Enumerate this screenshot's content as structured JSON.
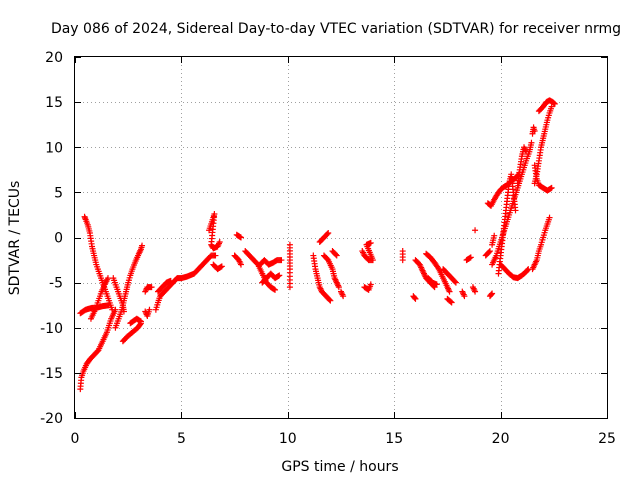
{
  "chart_data": {
    "type": "scatter",
    "title": "Day 086 of 2024, Sidereal Day-to-day VTEC variation (SDTVAR) for receiver nrmg",
    "xlabel": "GPS time / hours",
    "ylabel": "SDTVAR / TECUs",
    "xlim": [
      0,
      25
    ],
    "ylim": [
      -20,
      20
    ],
    "xticks": [
      0,
      5,
      10,
      15,
      20,
      25
    ],
    "yticks": [
      -20,
      -15,
      -10,
      -5,
      0,
      5,
      10,
      15,
      20
    ],
    "grid": true,
    "marker": "+",
    "color": "#ff0000",
    "segments": [
      [
        [
          0.25,
          -16.8
        ],
        [
          0.3,
          -15.5
        ],
        [
          0.4,
          -14.8
        ],
        [
          0.55,
          -14.0
        ],
        [
          0.7,
          -13.5
        ],
        [
          0.9,
          -13.0
        ],
        [
          1.1,
          -12.5
        ],
        [
          1.3,
          -11.5
        ],
        [
          1.5,
          -10.5
        ],
        [
          1.7,
          -9.0
        ],
        [
          1.9,
          -8.0
        ]
      ],
      [
        [
          0.25,
          -8.4
        ],
        [
          0.5,
          -8.0
        ],
        [
          0.8,
          -7.8
        ],
        [
          1.0,
          -7.8
        ],
        [
          1.3,
          -7.6
        ],
        [
          1.6,
          -7.5
        ]
      ],
      [
        [
          0.45,
          2.3
        ],
        [
          0.5,
          2.0
        ],
        [
          0.6,
          1.4
        ],
        [
          0.7,
          0.5
        ],
        [
          0.8,
          -1.0
        ],
        [
          0.9,
          -2.0
        ],
        [
          1.0,
          -3.0
        ],
        [
          1.15,
          -4.0
        ],
        [
          1.3,
          -5.0
        ],
        [
          1.45,
          -6.0
        ],
        [
          1.6,
          -7.0
        ],
        [
          1.75,
          -8.0
        ]
      ],
      [
        [
          0.75,
          -9.0
        ],
        [
          0.95,
          -8.0
        ],
        [
          1.1,
          -7.0
        ],
        [
          1.25,
          -6.0
        ],
        [
          1.4,
          -5.2
        ],
        [
          1.55,
          -4.5
        ]
      ],
      [
        [
          1.9,
          -10.0
        ],
        [
          2.05,
          -9.0
        ],
        [
          2.2,
          -8.0
        ],
        [
          2.3,
          -7.0
        ],
        [
          2.4,
          -6.0
        ],
        [
          2.5,
          -5.0
        ],
        [
          2.6,
          -4.2
        ],
        [
          2.7,
          -3.5
        ],
        [
          2.85,
          -2.6
        ],
        [
          3.0,
          -1.8
        ],
        [
          3.1,
          -1.3
        ],
        [
          3.15,
          -0.9
        ]
      ],
      [
        [
          1.8,
          -4.5
        ],
        [
          1.95,
          -5.5
        ],
        [
          2.1,
          -6.5
        ],
        [
          2.25,
          -7.5
        ],
        [
          2.3,
          -8.2
        ]
      ],
      [
        [
          2.25,
          -11.5
        ],
        [
          2.45,
          -11.0
        ],
        [
          2.7,
          -10.5
        ],
        [
          2.95,
          -10.0
        ],
        [
          3.1,
          -9.5
        ]
      ],
      [
        [
          2.6,
          -9.5
        ],
        [
          2.9,
          -9.0
        ],
        [
          3.1,
          -9.3
        ]
      ],
      [
        [
          3.3,
          -6.0
        ],
        [
          3.4,
          -5.5
        ],
        [
          3.6,
          -5.5
        ]
      ],
      [
        [
          3.3,
          -8.2
        ],
        [
          3.4,
          -8.7
        ],
        [
          3.5,
          -8.0
        ]
      ],
      [
        [
          3.8,
          -8.0
        ],
        [
          3.9,
          -7.2
        ],
        [
          4.0,
          -6.5
        ],
        [
          4.2,
          -6.0
        ],
        [
          4.4,
          -5.5
        ],
        [
          4.6,
          -5.0
        ],
        [
          4.8,
          -4.5
        ],
        [
          5.0,
          -4.5
        ],
        [
          5.3,
          -4.3
        ],
        [
          5.6,
          -4.0
        ],
        [
          5.8,
          -3.5
        ],
        [
          6.0,
          -3.0
        ],
        [
          6.2,
          -2.5
        ],
        [
          6.4,
          -2.0
        ],
        [
          6.6,
          -2.0
        ]
      ],
      [
        [
          3.9,
          -6.0
        ],
        [
          4.1,
          -5.5
        ],
        [
          4.3,
          -5.0
        ],
        [
          4.5,
          -4.8
        ]
      ],
      [
        [
          6.3,
          0.8
        ],
        [
          6.4,
          1.5
        ],
        [
          6.5,
          2.2
        ],
        [
          6.55,
          2.6
        ],
        [
          6.4,
          -0.8
        ],
        [
          6.5,
          -1.2
        ],
        [
          6.7,
          -1.0
        ],
        [
          6.8,
          -0.5
        ]
      ],
      [
        [
          6.5,
          -3.0
        ],
        [
          6.7,
          -3.5
        ],
        [
          6.9,
          -3.2
        ]
      ],
      [
        [
          7.6,
          0.3
        ],
        [
          7.8,
          0.0
        ]
      ],
      [
        [
          7.5,
          -2.0
        ],
        [
          7.7,
          -2.5
        ],
        [
          7.8,
          -3.0
        ]
      ],
      [
        [
          8.0,
          -1.5
        ],
        [
          8.2,
          -2.0
        ],
        [
          8.4,
          -2.5
        ],
        [
          8.6,
          -3.0
        ],
        [
          8.8,
          -4.0
        ],
        [
          9.0,
          -5.0
        ],
        [
          9.2,
          -5.5
        ],
        [
          9.4,
          -5.8
        ]
      ],
      [
        [
          8.7,
          -3.0
        ],
        [
          8.9,
          -2.5
        ],
        [
          9.1,
          -3.0
        ],
        [
          9.3,
          -2.8
        ],
        [
          9.5,
          -2.5
        ],
        [
          9.7,
          -2.5
        ]
      ],
      [
        [
          8.8,
          -5.0
        ],
        [
          9.0,
          -4.5
        ],
        [
          9.2,
          -4.0
        ],
        [
          9.4,
          -4.5
        ],
        [
          9.6,
          -4.2
        ]
      ],
      [
        [
          10.1,
          -0.8
        ],
        [
          10.1,
          -2.5
        ],
        [
          10.1,
          -3.5
        ],
        [
          10.1,
          -5.5
        ]
      ],
      [
        [
          11.2,
          -2.0
        ],
        [
          11.3,
          -3.5
        ],
        [
          11.4,
          -4.5
        ],
        [
          11.5,
          -5.5
        ],
        [
          11.6,
          -6.0
        ],
        [
          11.8,
          -6.5
        ],
        [
          12.0,
          -7.0
        ]
      ],
      [
        [
          11.5,
          -0.5
        ],
        [
          11.7,
          0.0
        ],
        [
          11.9,
          0.5
        ]
      ],
      [
        [
          11.7,
          -2.0
        ],
        [
          11.9,
          -2.5
        ],
        [
          12.1,
          -3.5
        ],
        [
          12.2,
          -4.5
        ],
        [
          12.3,
          -5.0
        ],
        [
          12.4,
          -5.5
        ]
      ],
      [
        [
          12.1,
          -1.5
        ],
        [
          12.3,
          -2.0
        ]
      ],
      [
        [
          12.5,
          -6.0
        ],
        [
          12.6,
          -6.5
        ]
      ],
      [
        [
          13.5,
          -1.5
        ],
        [
          13.6,
          -2.0
        ],
        [
          13.8,
          -2.5
        ],
        [
          14.0,
          -2.5
        ],
        [
          13.7,
          -0.8
        ],
        [
          13.9,
          -0.6
        ]
      ],
      [
        [
          13.6,
          -5.5
        ],
        [
          13.8,
          -5.8
        ],
        [
          13.9,
          -5.2
        ]
      ],
      [
        [
          15.4,
          -1.5
        ],
        [
          15.4,
          -2.5
        ]
      ],
      [
        [
          15.9,
          -6.5
        ],
        [
          16.0,
          -6.8
        ]
      ],
      [
        [
          16.0,
          -2.5
        ],
        [
          16.2,
          -3.0
        ],
        [
          16.3,
          -3.5
        ],
        [
          16.4,
          -4.0
        ],
        [
          16.5,
          -4.5
        ],
        [
          16.7,
          -5.0
        ],
        [
          16.9,
          -5.5
        ]
      ],
      [
        [
          16.5,
          -1.8
        ],
        [
          16.7,
          -2.2
        ],
        [
          16.9,
          -2.8
        ],
        [
          17.1,
          -3.5
        ],
        [
          17.3,
          -4.5
        ],
        [
          17.5,
          -5.5
        ],
        [
          17.6,
          -6.0
        ]
      ],
      [
        [
          16.6,
          -4.5
        ],
        [
          16.8,
          -5.0
        ],
        [
          17.0,
          -5.2
        ]
      ],
      [
        [
          17.5,
          -6.8
        ],
        [
          17.7,
          -7.2
        ]
      ],
      [
        [
          17.3,
          -3.5
        ],
        [
          17.5,
          -4.0
        ],
        [
          17.7,
          -4.5
        ],
        [
          17.9,
          -5.0
        ]
      ],
      [
        [
          18.2,
          -6.0
        ],
        [
          18.3,
          -6.5
        ]
      ],
      [
        [
          18.4,
          -2.5
        ],
        [
          18.6,
          -2.2
        ]
      ],
      [
        [
          18.8,
          0.8
        ]
      ],
      [
        [
          18.7,
          -5.5
        ],
        [
          18.8,
          -6.0
        ]
      ],
      [
        [
          19.3,
          -2.0
        ],
        [
          19.5,
          -1.5
        ]
      ],
      [
        [
          19.5,
          -6.5
        ],
        [
          19.6,
          -6.2
        ]
      ],
      [
        [
          19.6,
          -0.8
        ],
        [
          19.7,
          0.2
        ]
      ],
      [
        [
          19.4,
          3.8
        ],
        [
          19.55,
          3.5
        ],
        [
          19.7,
          4.2
        ],
        [
          19.85,
          4.8
        ],
        [
          20.0,
          5.3
        ],
        [
          20.15,
          5.6
        ],
        [
          20.3,
          5.8
        ],
        [
          20.5,
          6.2
        ],
        [
          20.7,
          6.6
        ],
        [
          20.85,
          7.0
        ]
      ],
      [
        [
          19.6,
          -3.0
        ],
        [
          19.8,
          -2.0
        ],
        [
          20.0,
          -0.5
        ],
        [
          20.2,
          1.0
        ],
        [
          20.4,
          2.5
        ],
        [
          20.6,
          4.0
        ],
        [
          20.8,
          5.5
        ],
        [
          21.0,
          7.0
        ],
        [
          21.2,
          8.5
        ],
        [
          21.35,
          9.5
        ],
        [
          21.45,
          10.5
        ]
      ],
      [
        [
          20.0,
          -3.0
        ],
        [
          20.2,
          -3.5
        ],
        [
          20.4,
          -4.0
        ],
        [
          20.6,
          -4.4
        ],
        [
          20.8,
          -4.5
        ],
        [
          21.0,
          -4.2
        ],
        [
          21.2,
          -3.8
        ],
        [
          21.3,
          -3.5
        ]
      ],
      [
        [
          19.9,
          -4.0
        ],
        [
          20.0,
          -2.0
        ],
        [
          20.1,
          0.0
        ],
        [
          20.2,
          2.0
        ],
        [
          20.3,
          4.0
        ],
        [
          20.4,
          6.0
        ],
        [
          20.5,
          7.0
        ],
        [
          20.6,
          5.0
        ],
        [
          20.7,
          3.0
        ]
      ],
      [
        [
          20.8,
          6.0
        ],
        [
          20.9,
          7.5
        ],
        [
          21.0,
          9.0
        ],
        [
          21.1,
          10.0
        ],
        [
          21.2,
          9.5
        ]
      ],
      [
        [
          21.5,
          11.5
        ],
        [
          21.55,
          12.2
        ],
        [
          21.6,
          11.8
        ]
      ],
      [
        [
          21.5,
          -3.5
        ],
        [
          21.6,
          -3.0
        ],
        [
          21.7,
          -2.5
        ],
        [
          21.8,
          -1.5
        ],
        [
          21.9,
          -0.8
        ],
        [
          22.0,
          0.0
        ],
        [
          22.1,
          0.8
        ],
        [
          22.2,
          1.5
        ],
        [
          22.3,
          2.2
        ]
      ],
      [
        [
          21.6,
          6.0
        ],
        [
          21.7,
          7.0
        ],
        [
          21.8,
          8.5
        ],
        [
          21.9,
          10.0
        ],
        [
          22.0,
          11.0
        ],
        [
          22.1,
          12.0
        ],
        [
          22.2,
          13.0
        ],
        [
          22.3,
          13.8
        ],
        [
          22.4,
          14.5
        ]
      ],
      [
        [
          21.6,
          8.0
        ],
        [
          21.7,
          6.5
        ],
        [
          21.8,
          5.8
        ],
        [
          22.0,
          5.5
        ],
        [
          22.2,
          5.2
        ],
        [
          22.4,
          5.5
        ]
      ],
      [
        [
          21.8,
          14.0
        ],
        [
          22.0,
          14.5
        ],
        [
          22.15,
          15.0
        ],
        [
          22.3,
          15.2
        ],
        [
          22.45,
          15.0
        ],
        [
          22.55,
          14.8
        ]
      ]
    ]
  }
}
